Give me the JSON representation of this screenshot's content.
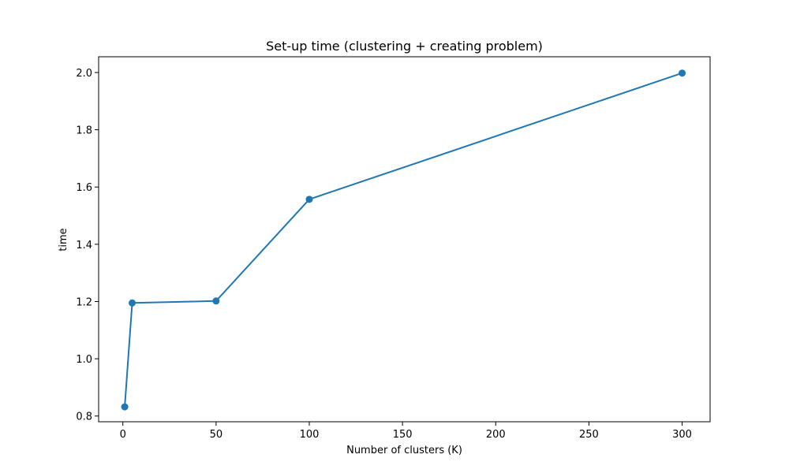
{
  "chart_data": {
    "type": "line",
    "title": "Set-up time (clustering + creating problem)",
    "xlabel": "Number of clusters (K)",
    "ylabel": "time",
    "xlim": [
      -13,
      315
    ],
    "ylim": [
      0.78,
      2.055
    ],
    "xticks": [
      0,
      50,
      100,
      150,
      200,
      250,
      300
    ],
    "yticks": [
      0.8,
      1.0,
      1.2,
      1.4,
      1.6,
      1.8,
      2.0
    ],
    "xtick_labels": [
      "0",
      "50",
      "100",
      "150",
      "200",
      "250",
      "300"
    ],
    "ytick_labels": [
      "0.8",
      "1.0",
      "1.2",
      "1.4",
      "1.6",
      "1.8",
      "2.0"
    ],
    "grid": false,
    "series": [
      {
        "color": "#1f77b4",
        "marker": "circle",
        "x": [
          1,
          5,
          50,
          100,
          300
        ],
        "y": [
          0.832,
          1.195,
          1.202,
          1.557,
          1.998
        ]
      }
    ]
  }
}
